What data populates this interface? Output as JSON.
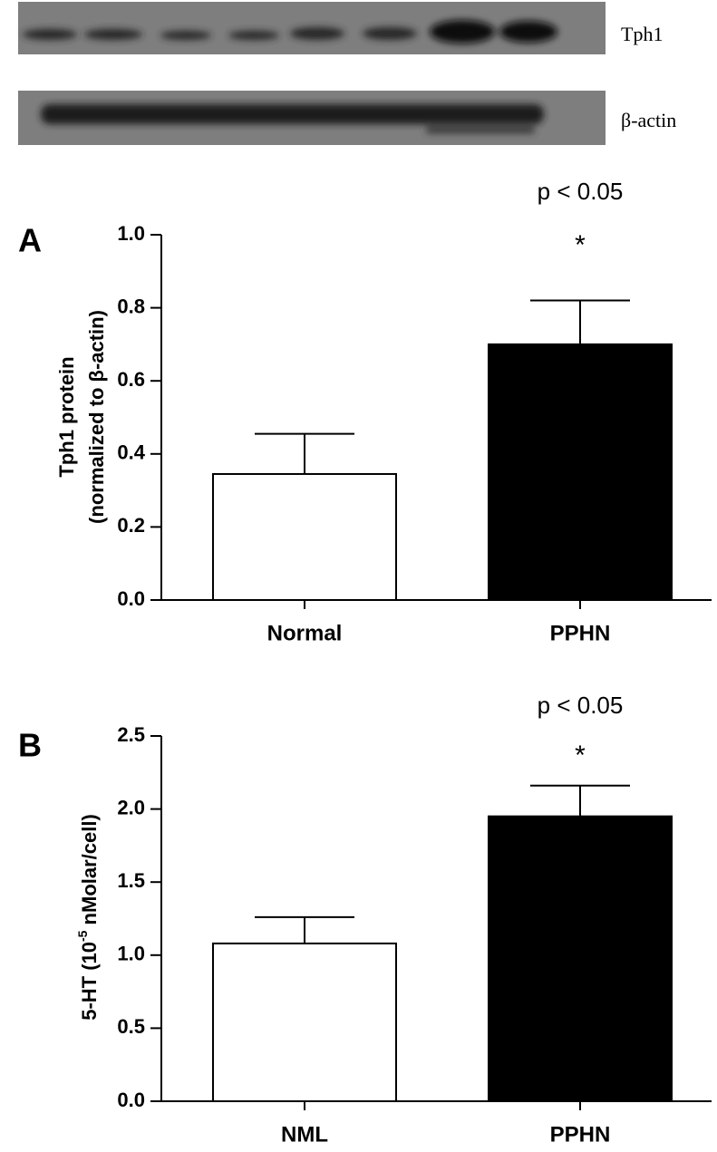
{
  "blot": {
    "labels": [
      "Tph1",
      "β-actin"
    ]
  },
  "chart_data": [
    {
      "type": "bar",
      "panel_label": "A",
      "annotation": "p < 0.05",
      "significance": "*",
      "y_label_lines": [
        "Tph1 protein",
        "(normalized to β-actin)"
      ],
      "categories": [
        "Normal",
        "PPHN"
      ],
      "values": [
        0.345,
        0.7
      ],
      "errors": [
        0.11,
        0.12
      ],
      "colors": [
        "#ffffff",
        "#000000"
      ],
      "ylim": [
        0,
        1
      ],
      "yticks": [
        {
          "value": 0,
          "label": "0.0"
        },
        0.2,
        0.4,
        0.6,
        0.8,
        {
          "value": 1,
          "label": "1.0"
        }
      ]
    },
    {
      "type": "bar",
      "panel_label": "B",
      "annotation": "p < 0.05",
      "significance": "*",
      "y_label_parts": [
        "5-HT (10",
        "-5",
        " nMolar/cell)"
      ],
      "categories": [
        "NML",
        "PPHN"
      ],
      "values": [
        1.08,
        1.95
      ],
      "errors": [
        0.18,
        0.21
      ],
      "colors": [
        "#ffffff",
        "#000000"
      ],
      "ylim": [
        0,
        2.5
      ],
      "yticks": [
        {
          "value": 0,
          "label": "0.0"
        },
        0.5,
        {
          "value": 1,
          "label": "1.0"
        },
        1.5,
        {
          "value": 2,
          "label": "2.0"
        },
        2.5
      ]
    }
  ]
}
